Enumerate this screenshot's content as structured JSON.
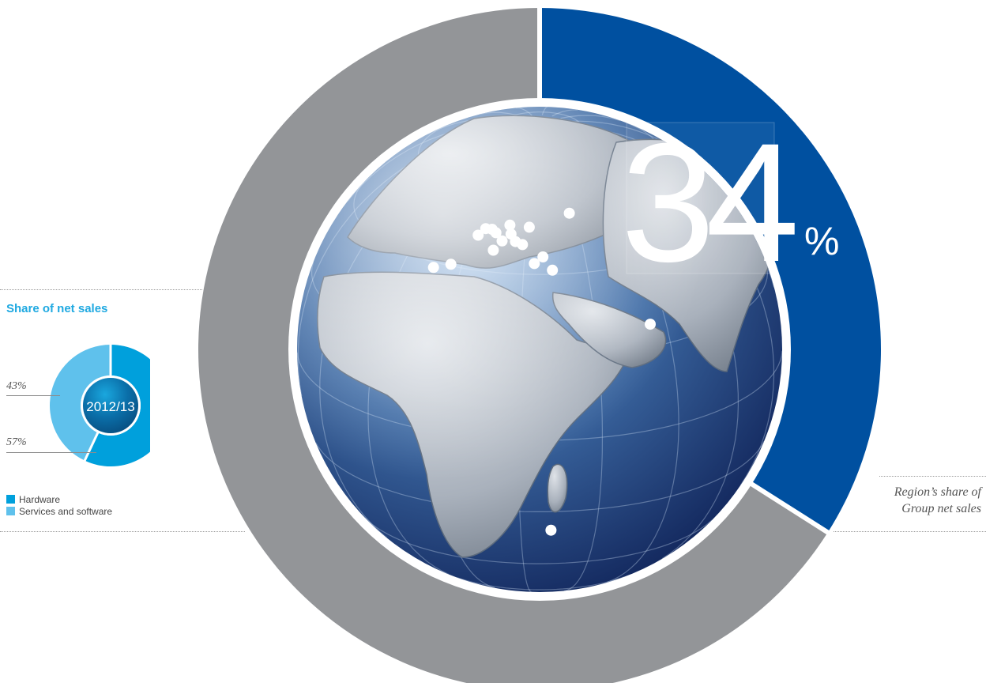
{
  "chart_data": [
    {
      "type": "pie",
      "variant": "donut",
      "role": "region-share",
      "value_label": "34",
      "unit": "%",
      "slices": [
        {
          "label": "",
          "value": 34,
          "color": "#0050a0"
        },
        {
          "label": "",
          "value": 66,
          "color": "#939598"
        }
      ],
      "note_lines": [
        "Region’s share of",
        "Group net sales"
      ],
      "map_markers": [
        {
          "lon": -9.1,
          "lat": 38.7
        },
        {
          "lon": -3.7,
          "lat": 40.4
        },
        {
          "lon": 2.35,
          "lat": 48.86
        },
        {
          "lon": 4.4,
          "lat": 50.85
        },
        {
          "lon": 6.9,
          "lat": 50.9
        },
        {
          "lon": 8.7,
          "lat": 50.1
        },
        {
          "lon": 9.2,
          "lat": 45.5
        },
        {
          "lon": 11.6,
          "lat": 48.1
        },
        {
          "lon": 13.4,
          "lat": 52.5
        },
        {
          "lon": 14.4,
          "lat": 50.1
        },
        {
          "lon": 16.4,
          "lat": 48.2
        },
        {
          "lon": 19.0,
          "lat": 47.5
        },
        {
          "lon": 21.0,
          "lat": 52.2
        },
        {
          "lon": 23.3,
          "lat": 42.7
        },
        {
          "lon": 26.1,
          "lat": 44.4
        },
        {
          "lon": 29.0,
          "lat": 41.0
        },
        {
          "lon": 37.6,
          "lat": 55.8
        },
        {
          "lon": 55.3,
          "lat": 25.3
        },
        {
          "lon": 28.0,
          "lat": -26.2
        }
      ]
    },
    {
      "type": "pie",
      "variant": "donut",
      "role": "share-of-net-sales",
      "title": "Share of net sales",
      "center_label": "2012/13",
      "slices": [
        {
          "label": "Hardware",
          "value": 57,
          "display": "57%",
          "color": "#00a0dc"
        },
        {
          "label": "Services and software",
          "value": 43,
          "display": "43%",
          "color": "#5fc1ec"
        }
      ],
      "legend": [
        {
          "label": "Hardware",
          "color": "#00a0dc"
        },
        {
          "label": "Services and software",
          "color": "#5fc1ec"
        }
      ]
    }
  ]
}
